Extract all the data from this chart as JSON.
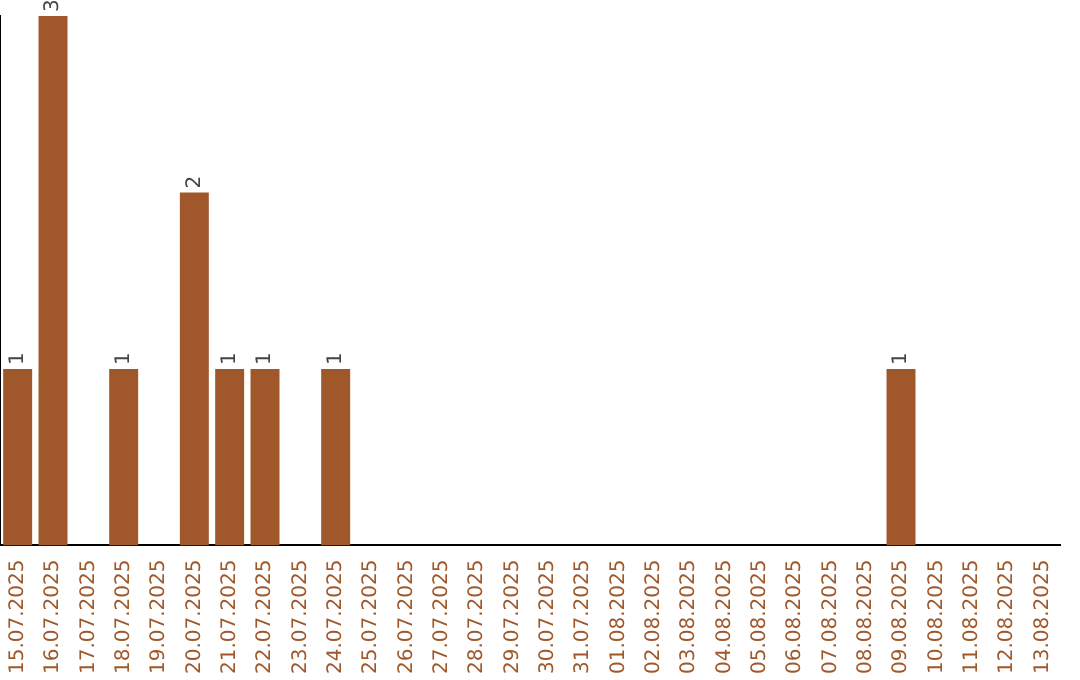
{
  "chart_data": {
    "type": "bar",
    "categories": [
      "15.07.2025",
      "16.07.2025",
      "17.07.2025",
      "18.07.2025",
      "19.07.2025",
      "20.07.2025",
      "21.07.2025",
      "22.07.2025",
      "23.07.2025",
      "24.07.2025",
      "25.07.2025",
      "26.07.2025",
      "27.07.2025",
      "28.07.2025",
      "29.07.2025",
      "30.07.2025",
      "31.07.2025",
      "01.08.2025",
      "02.08.2025",
      "03.08.2025",
      "04.08.2025",
      "05.08.2025",
      "06.08.2025",
      "07.08.2025",
      "08.08.2025",
      "09.08.2025",
      "10.08.2025",
      "11.08.2025",
      "12.08.2025",
      "13.08.2025"
    ],
    "values": [
      1,
      3,
      0,
      1,
      0,
      2,
      1,
      1,
      0,
      1,
      0,
      0,
      0,
      0,
      0,
      0,
      0,
      0,
      0,
      0,
      0,
      0,
      0,
      0,
      0,
      1,
      0,
      0,
      0,
      0
    ],
    "value_labels": [
      "1",
      "3",
      null,
      "1",
      null,
      "2",
      "1",
      "1",
      null,
      "1",
      null,
      null,
      null,
      null,
      null,
      null,
      null,
      null,
      null,
      null,
      null,
      null,
      null,
      null,
      null,
      "1",
      null,
      null,
      null,
      null
    ],
    "color": "#a0582a",
    "grid": false,
    "legend": false,
    "tick_labels": "x"
  }
}
